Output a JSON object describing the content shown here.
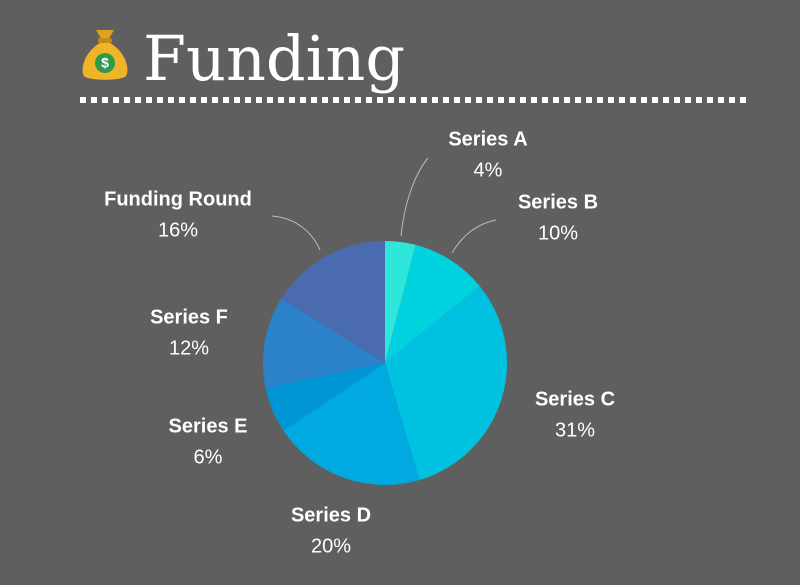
{
  "chart_data": {
    "type": "pie",
    "title": "Funding",
    "categories": [
      "Series A",
      "Series B",
      "Series C",
      "Series D",
      "Series E",
      "Series F",
      "Funding Round"
    ],
    "values": [
      4,
      10,
      31,
      20,
      6,
      12,
      16
    ],
    "value_labels": [
      "4%",
      "10%",
      "31%",
      "20%",
      "6%",
      "12%",
      "16%"
    ],
    "colors": [
      "#2ee6d9",
      "#00d2df",
      "#00c2e0",
      "#00aae0",
      "#0096d6",
      "#2b82c8",
      "#4b6bb0"
    ]
  }
}
